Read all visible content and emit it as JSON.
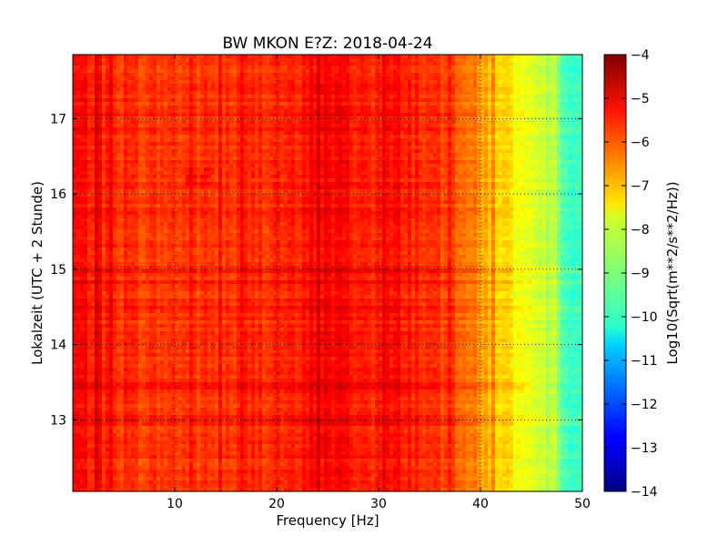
{
  "chart_data": {
    "type": "heatmap",
    "title": "BW MKON E?Z: 2018-04-24",
    "xlabel": "Frequency [Hz]",
    "ylabel": "Lokalzeit (UTC + 2 Stunde)",
    "xlim": [
      0,
      50
    ],
    "ylim": [
      17.85,
      12.05
    ],
    "x_ticks": [
      10,
      20,
      30,
      40,
      50
    ],
    "y_ticks": [
      13,
      14,
      15,
      16,
      17
    ],
    "grid": true,
    "colormap": "jet",
    "colorbar": {
      "label": "Log10(Sqrt(m**2/s**2/Hz))",
      "range": [
        -14,
        -4
      ],
      "ticks": [
        -4,
        -5,
        -6,
        -7,
        -8,
        -9,
        -10,
        -11,
        -12,
        -13,
        -14
      ]
    },
    "spectral_profile": {
      "frequency_hz": [
        0,
        2,
        4,
        6,
        10,
        15,
        20,
        22,
        24,
        26,
        28,
        30,
        32,
        34,
        36,
        37,
        38,
        39,
        40,
        41,
        42,
        43,
        44,
        45,
        46,
        47,
        48,
        49,
        50
      ],
      "log10_amplitude": [
        -5.3,
        -5.5,
        -5.7,
        -5.8,
        -5.8,
        -5.8,
        -5.6,
        -5.7,
        -5.2,
        -5.3,
        -5.5,
        -5.6,
        -5.4,
        -5.6,
        -5.9,
        -6.0,
        -6.1,
        -6.4,
        -6.8,
        -7.0,
        -7.3,
        -7.6,
        -7.9,
        -8.2,
        -8.5,
        -8.8,
        -9.2,
        -9.6,
        -9.9
      ]
    },
    "annotations": [
      {
        "type": "horizontal_band",
        "time_h": 13.45,
        "log10_amplitude_offset": 0.45
      },
      {
        "type": "horizontal_band",
        "time_h": 15.75,
        "log10_amplitude_offset": 0.25
      },
      {
        "type": "patch",
        "frequency_hz": [
          11,
          14
        ],
        "time_h": [
          16.1,
          16.35
        ],
        "log10_amplitude_offset": 0.5
      }
    ]
  }
}
